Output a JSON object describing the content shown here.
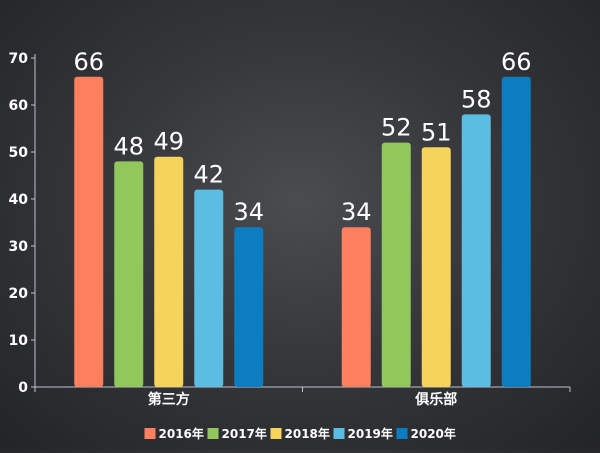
{
  "chart_data": {
    "type": "bar",
    "categories": [
      "第三方",
      "俱乐部"
    ],
    "series": [
      {
        "name": "2016年",
        "color": "#FF7F5F",
        "values": [
          66,
          34
        ]
      },
      {
        "name": "2017年",
        "color": "#92C75B",
        "values": [
          48,
          52
        ]
      },
      {
        "name": "2018年",
        "color": "#F6D35B",
        "values": [
          49,
          51
        ]
      },
      {
        "name": "2019年",
        "color": "#5BBDE2",
        "values": [
          42,
          58
        ]
      },
      {
        "name": "2020年",
        "color": "#0D7DC1",
        "values": [
          34,
          66
        ]
      }
    ],
    "y_ticks": [
      "0",
      "10",
      "20",
      "30",
      "40",
      "50",
      "60",
      "70"
    ],
    "ylim": [
      0,
      70
    ],
    "grid": false,
    "legend_position": "bottom",
    "data_labels": true
  }
}
